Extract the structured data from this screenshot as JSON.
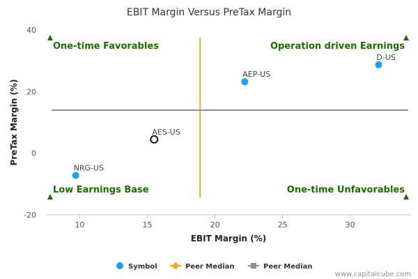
{
  "chart_data": {
    "type": "scatter",
    "title": "EBIT Margin Versus PreTax Margin",
    "xlabel": "EBIT Margin (%)",
    "ylabel": "PreTax Margin (%)",
    "xlim": [
      7.5,
      34.5
    ],
    "ylim": [
      -20,
      40
    ],
    "xticks": [
      10,
      15,
      20,
      25,
      30
    ],
    "yticks": [
      -20,
      0,
      20,
      40
    ],
    "grid": false,
    "legend_position": "bottom",
    "series": [
      {
        "name": "Symbol",
        "color": "#1aa0f0",
        "points": [
          {
            "label": "NRG-US",
            "x": 9.7,
            "y": -7.2
          },
          {
            "label": "AES-US",
            "x": 15.5,
            "y": 4.5,
            "highlight": true
          },
          {
            "label": "AEP-US",
            "x": 22.2,
            "y": 23.2
          },
          {
            "label": "D-US",
            "x": 32.1,
            "y": 28.7
          }
        ]
      },
      {
        "name": "Peer Median",
        "color": "#f5a623",
        "orientation": "vertical",
        "value": 18.9,
        "y_range": [
          -14.5,
          37.5
        ]
      },
      {
        "name": "Peer Median",
        "color": "#8c8c94",
        "orientation": "horizontal",
        "value": 14.0
      }
    ],
    "quadrants": [
      {
        "text": "One-time Favorables",
        "anchor": "top-left"
      },
      {
        "text": "Operation driven Earnings",
        "anchor": "top-right"
      },
      {
        "text": "Low Earnings Base",
        "anchor": "bottom-left"
      },
      {
        "text": "One-time Unfavorables",
        "anchor": "bottom-right"
      }
    ],
    "marker_color": "#1e6b00"
  },
  "credit": "www.capitalcube.com"
}
